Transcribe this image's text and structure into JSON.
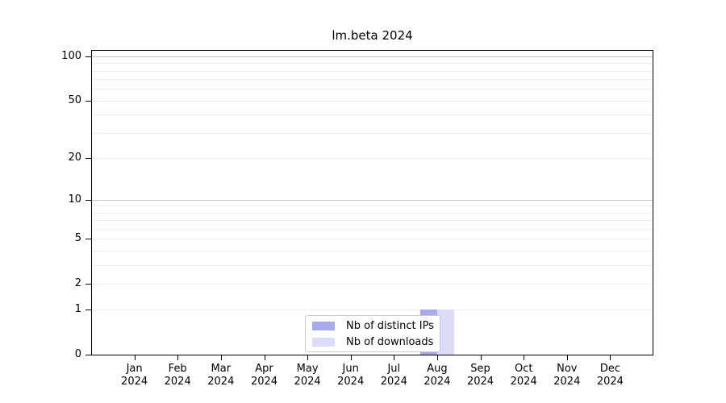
{
  "figure": {
    "title": "lm.beta 2024"
  },
  "chart_data": {
    "type": "bar",
    "title": "lm.beta 2024",
    "x": {
      "months": [
        "Jan",
        "Feb",
        "Mar",
        "Apr",
        "May",
        "Jun",
        "Jul",
        "Aug",
        "Sep",
        "Oct",
        "Nov",
        "Dec"
      ],
      "year": "2024"
    },
    "categories": [
      "Jan 2024",
      "Feb 2024",
      "Mar 2024",
      "Apr 2024",
      "May 2024",
      "Jun 2024",
      "Jul 2024",
      "Aug 2024",
      "Sep 2024",
      "Oct 2024",
      "Nov 2024",
      "Dec 2024"
    ],
    "series": [
      {
        "name": "Nb of distinct IPs",
        "color": "#a9a9ee",
        "values": [
          0,
          0,
          0,
          0,
          0,
          0,
          0,
          1,
          0,
          0,
          0,
          0
        ]
      },
      {
        "name": "Nb of downloads",
        "color": "#dcdcf9",
        "values": [
          0,
          0,
          0,
          0,
          0,
          0,
          0,
          1,
          0,
          0,
          0,
          0
        ]
      }
    ],
    "y_axis": {
      "scale": "log10(value+1)",
      "ticks": [
        0,
        1,
        2,
        5,
        10,
        20,
        50,
        100
      ],
      "minor_gridlines": [
        1,
        2,
        3,
        4,
        5,
        6,
        7,
        8,
        9,
        20,
        30,
        40,
        50,
        60,
        70,
        80,
        90
      ],
      "major_gridlines": [
        10,
        100
      ],
      "ylim": [
        0,
        111
      ]
    },
    "legend": {
      "position": "bottom-center-inside",
      "entries": [
        "Nb of distinct IPs",
        "Nb of downloads"
      ]
    },
    "colors": {
      "background": "#ffffff",
      "frame": "#000000",
      "axis_text": "#000000",
      "minor_gridline": "#ededed",
      "major_gridline": "#c6c6c6",
      "legend_border": "#c9c9c9",
      "legend_background": "#ffffff"
    }
  }
}
